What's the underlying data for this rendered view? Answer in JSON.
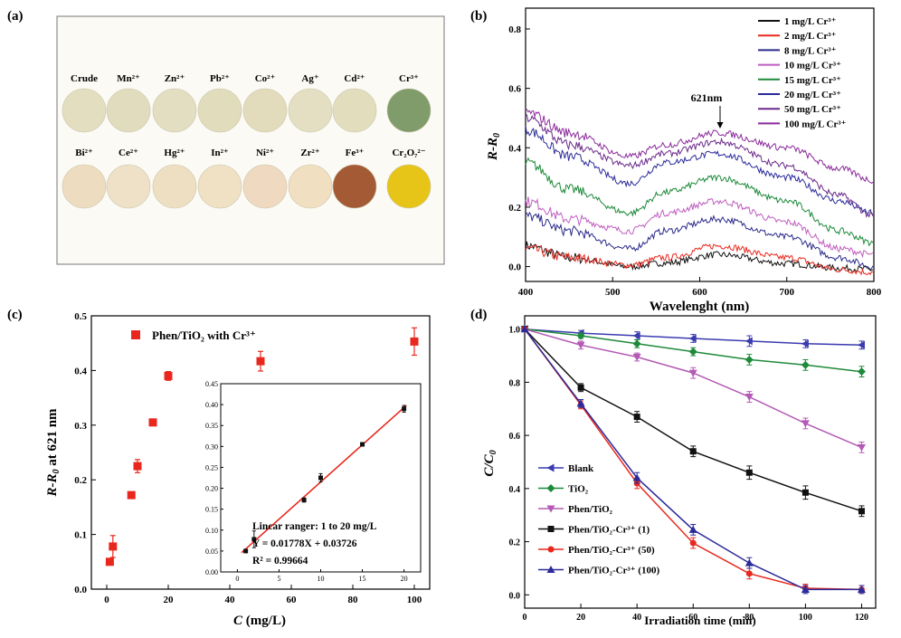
{
  "panel_a": {
    "label": "(a)",
    "row1": [
      {
        "name": "Crude",
        "color": "#e3dec0"
      },
      {
        "name": "Mn²⁺",
        "color": "#e1dcbd"
      },
      {
        "name": "Zn²⁺",
        "color": "#e3dec1"
      },
      {
        "name": "Pb²⁺",
        "color": "#e0dcbc"
      },
      {
        "name": "Co²⁺",
        "color": "#e2dcbd"
      },
      {
        "name": "Ag⁺",
        "color": "#e4dfc2"
      },
      {
        "name": "Cd²⁺",
        "color": "#e2ddbd"
      },
      {
        "name": "Cr³⁺",
        "color": "#7f9c6a"
      }
    ],
    "row2": [
      {
        "name": "Bi²⁺",
        "color": "#eddcc0"
      },
      {
        "name": "Ce²⁺",
        "color": "#eee1c8"
      },
      {
        "name": "Hg²⁺",
        "color": "#eedfc2"
      },
      {
        "name": "In²⁺",
        "color": "#f0e1c4"
      },
      {
        "name": "Ni²⁺",
        "color": "#efd9c1"
      },
      {
        "name": "Zr²⁺",
        "color": "#f0dfc0"
      },
      {
        "name": "Fe³⁺",
        "color": "#a45a34"
      },
      {
        "name": "Cr₂O₇²⁻",
        "color": "#e6c418"
      }
    ]
  },
  "chart_data": [
    {
      "panel": "(b)",
      "type": "line",
      "xlabel": "Wavelenght (nm)",
      "ylabel": "R-R0",
      "xlim": [
        400,
        800
      ],
      "ylim": [
        -0.05,
        0.87
      ],
      "xticks": [
        "400",
        "500",
        "600",
        "700",
        "800"
      ],
      "yticks": [
        "0.0",
        "0.2",
        "0.4",
        "0.6",
        "0.8"
      ],
      "legend_position": "top-right",
      "annotation": "621nm",
      "series": [
        {
          "name": "1 mg/L Cr³⁺",
          "color": "#111111",
          "values": [
            [
              400,
              0.07
            ],
            [
              450,
              0.03
            ],
            [
              520,
              0.0
            ],
            [
              560,
              0.012
            ],
            [
              621,
              0.04
            ],
            [
              700,
              0.01
            ],
            [
              760,
              -0.005
            ],
            [
              800,
              -0.01
            ]
          ]
        },
        {
          "name": "2 mg/L Cr³⁺",
          "color": "#e8281e",
          "values": [
            [
              400,
              0.06
            ],
            [
              450,
              0.03
            ],
            [
              520,
              0.005
            ],
            [
              560,
              0.03
            ],
            [
              621,
              0.07
            ],
            [
              700,
              0.03
            ],
            [
              760,
              -0.01
            ],
            [
              800,
              -0.02
            ]
          ]
        },
        {
          "name": "8 mg/L Cr³⁺",
          "color": "#2a2a8a",
          "values": [
            [
              400,
              0.17
            ],
            [
              450,
              0.12
            ],
            [
              520,
              0.06
            ],
            [
              560,
              0.12
            ],
            [
              621,
              0.16
            ],
            [
              700,
              0.1
            ],
            [
              760,
              0.03
            ],
            [
              800,
              0.0
            ]
          ]
        },
        {
          "name": "10 mg/L Cr³⁺",
          "color": "#c05ec0",
          "values": [
            [
              400,
              0.22
            ],
            [
              450,
              0.16
            ],
            [
              520,
              0.12
            ],
            [
              560,
              0.18
            ],
            [
              621,
              0.22
            ],
            [
              700,
              0.15
            ],
            [
              760,
              0.06
            ],
            [
              800,
              0.04
            ]
          ]
        },
        {
          "name": "15 mg/L Cr³⁺",
          "color": "#1e8a3a",
          "values": [
            [
              400,
              0.35
            ],
            [
              450,
              0.26
            ],
            [
              520,
              0.18
            ],
            [
              560,
              0.25
            ],
            [
              621,
              0.3
            ],
            [
              700,
              0.22
            ],
            [
              760,
              0.12
            ],
            [
              800,
              0.08
            ]
          ]
        },
        {
          "name": "20 mg/L Cr³⁺",
          "color": "#2a2a9a",
          "values": [
            [
              400,
              0.46
            ],
            [
              450,
              0.37
            ],
            [
              520,
              0.28
            ],
            [
              560,
              0.35
            ],
            [
              621,
              0.38
            ],
            [
              700,
              0.3
            ],
            [
              760,
              0.22
            ],
            [
              800,
              0.18
            ]
          ]
        },
        {
          "name": "50 mg/L Cr³⁺",
          "color": "#6a2a8a",
          "values": [
            [
              400,
              0.5
            ],
            [
              450,
              0.41
            ],
            [
              520,
              0.34
            ],
            [
              560,
              0.38
            ],
            [
              621,
              0.42
            ],
            [
              700,
              0.34
            ],
            [
              760,
              0.24
            ],
            [
              800,
              0.17
            ]
          ]
        },
        {
          "name": "100 mg/L Cr³⁺",
          "color": "#8a2a9a",
          "values": [
            [
              400,
              0.52
            ],
            [
              450,
              0.45
            ],
            [
              520,
              0.37
            ],
            [
              560,
              0.41
            ],
            [
              621,
              0.45
            ],
            [
              700,
              0.4
            ],
            [
              760,
              0.33
            ],
            [
              800,
              0.29
            ]
          ]
        }
      ]
    },
    {
      "panel": "(c)",
      "type": "scatter",
      "xlabel": "C (mg/L)",
      "ylabel": "R-R0 at 621 nm",
      "xlim": [
        -5,
        105
      ],
      "ylim": [
        0,
        0.5
      ],
      "xticks": [
        "0",
        "20",
        "40",
        "60",
        "80",
        "100"
      ],
      "yticks": [
        "0.0",
        "0.1",
        "0.2",
        "0.3",
        "0.4",
        "0.5"
      ],
      "legend_position": "top-left",
      "series": [
        {
          "name": "Phen/TiO₂ with Cr³⁺",
          "color": "#e8281e",
          "x": [
            1,
            2,
            8,
            10,
            15,
            20,
            50,
            100
          ],
          "y": [
            0.05,
            0.078,
            0.172,
            0.225,
            0.305,
            0.39,
            0.417,
            0.453
          ],
          "err": [
            0.004,
            0.02,
            0.005,
            0.012,
            0.003,
            0.008,
            0.018,
            0.025
          ]
        }
      ],
      "inset": {
        "type": "scatter",
        "xlim": [
          -2,
          22
        ],
        "ylim": [
          0,
          0.45
        ],
        "xticks": [
          "0",
          "5",
          "10",
          "15",
          "20"
        ],
        "yticks": [
          "0.00",
          "0.05",
          "0.10",
          "0.15",
          "0.20",
          "0.25",
          "0.30",
          "0.35",
          "0.40",
          "0.45"
        ],
        "x": [
          1,
          2,
          8,
          10,
          15,
          20
        ],
        "y": [
          0.05,
          0.078,
          0.172,
          0.225,
          0.305,
          0.39
        ],
        "err": [
          0.004,
          0.02,
          0.005,
          0.01,
          0.003,
          0.008
        ],
        "fit": {
          "slope": 0.01778,
          "intercept": 0.03726,
          "color": "#e8281e"
        },
        "annotations": [
          "Lincar ranger: 1 to 20 mg/L",
          "Y = 0.01778X + 0.03726",
          "R² = 0.99664"
        ]
      }
    },
    {
      "panel": "(d)",
      "type": "line",
      "xlabel": "Irradiation time (min)",
      "ylabel": "C/C0",
      "xlim": [
        0,
        125
      ],
      "ylim": [
        -0.05,
        1.05
      ],
      "xticks": [
        "0",
        "20",
        "40",
        "60",
        "80",
        "100",
        "120"
      ],
      "yticks": [
        "0.0",
        "0.2",
        "0.4",
        "0.6",
        "0.8",
        "1.0"
      ],
      "legend_position": "bottom-left",
      "x": [
        0,
        20,
        40,
        60,
        80,
        100,
        120
      ],
      "series": [
        {
          "name": "Blank",
          "color": "#3b3bb0",
          "marker": "tri-left",
          "values": [
            1.0,
            0.985,
            0.975,
            0.965,
            0.955,
            0.945,
            0.94
          ],
          "err": [
            0,
            0.01,
            0.015,
            0.015,
            0.02,
            0.015,
            0.015
          ]
        },
        {
          "name": "TiO₂",
          "color": "#1e8a3a",
          "marker": "diamond",
          "values": [
            1.0,
            0.975,
            0.945,
            0.915,
            0.885,
            0.865,
            0.84
          ],
          "err": [
            0,
            0.01,
            0.015,
            0.015,
            0.02,
            0.02,
            0.02
          ]
        },
        {
          "name": "Phen/TiO₂",
          "color": "#b45ab4",
          "marker": "tri-down",
          "values": [
            1.0,
            0.94,
            0.895,
            0.835,
            0.745,
            0.645,
            0.555
          ],
          "err": [
            0,
            0.015,
            0.015,
            0.02,
            0.02,
            0.02,
            0.02
          ]
        },
        {
          "name": "Phen/TiO₂-Cr³⁺ (1)",
          "color": "#111111",
          "marker": "square",
          "values": [
            1.0,
            0.78,
            0.67,
            0.54,
            0.46,
            0.385,
            0.315
          ],
          "err": [
            0,
            0.015,
            0.02,
            0.02,
            0.025,
            0.025,
            0.02
          ]
        },
        {
          "name": "Phen/TiO₂-Cr³⁺ (50)",
          "color": "#e8281e",
          "marker": "circle",
          "values": [
            1.0,
            0.715,
            0.42,
            0.195,
            0.08,
            0.025,
            0.02
          ],
          "err": [
            0,
            0.015,
            0.02,
            0.02,
            0.02,
            0.015,
            0.015
          ]
        },
        {
          "name": "Phen/TiO₂-Cr³⁺ (100)",
          "color": "#2a2a9a",
          "marker": "tri-up",
          "values": [
            1.0,
            0.72,
            0.44,
            0.245,
            0.12,
            0.02,
            0.02
          ],
          "err": [
            0,
            0.015,
            0.02,
            0.02,
            0.02,
            0.015,
            0.015
          ]
        }
      ]
    }
  ]
}
